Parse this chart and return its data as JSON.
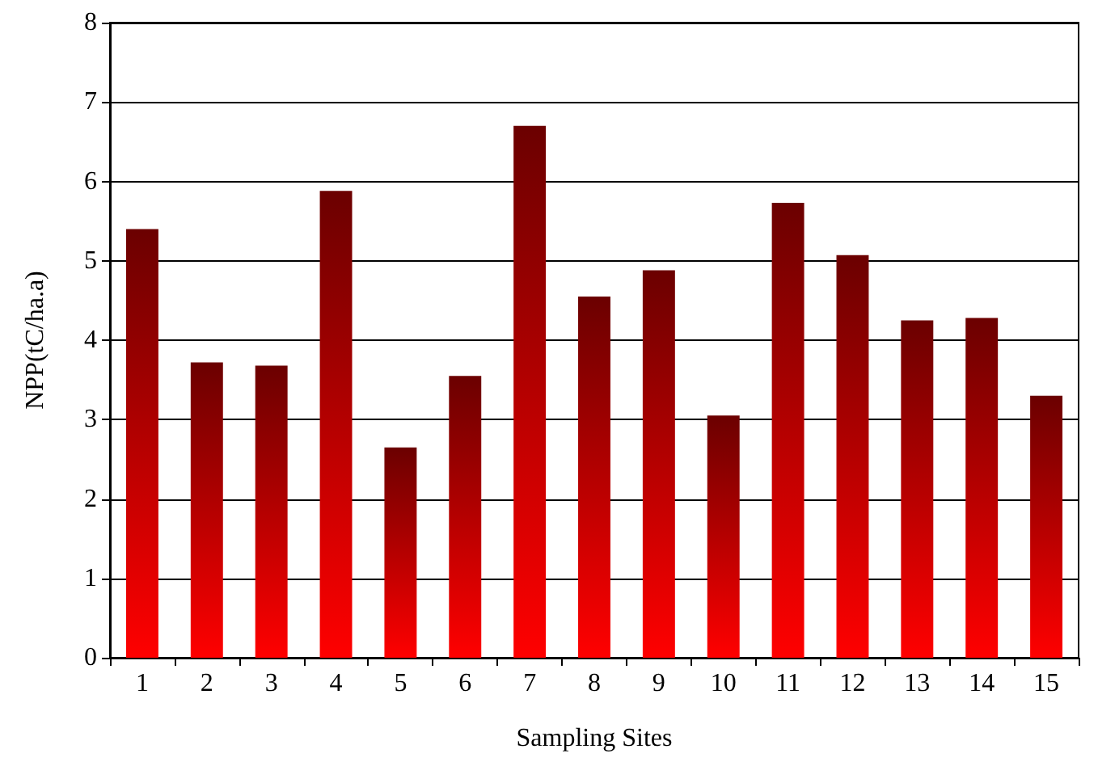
{
  "chart_data": {
    "type": "bar",
    "xlabel": "Sampling Sites",
    "ylabel": "NPP(tC/ha.a)",
    "categories": [
      "1",
      "2",
      "3",
      "4",
      "5",
      "6",
      "7",
      "8",
      "9",
      "10",
      "11",
      "12",
      "13",
      "14",
      "15"
    ],
    "values": [
      5.4,
      3.72,
      3.68,
      5.88,
      2.65,
      3.55,
      6.7,
      4.55,
      4.88,
      3.05,
      5.73,
      5.07,
      4.25,
      4.28,
      3.3
    ],
    "color": "#ff0000",
    "ylim": [
      0,
      8
    ],
    "yticks": [
      0,
      1,
      2,
      3,
      4,
      5,
      6,
      7,
      8
    ],
    "grid": "y"
  }
}
